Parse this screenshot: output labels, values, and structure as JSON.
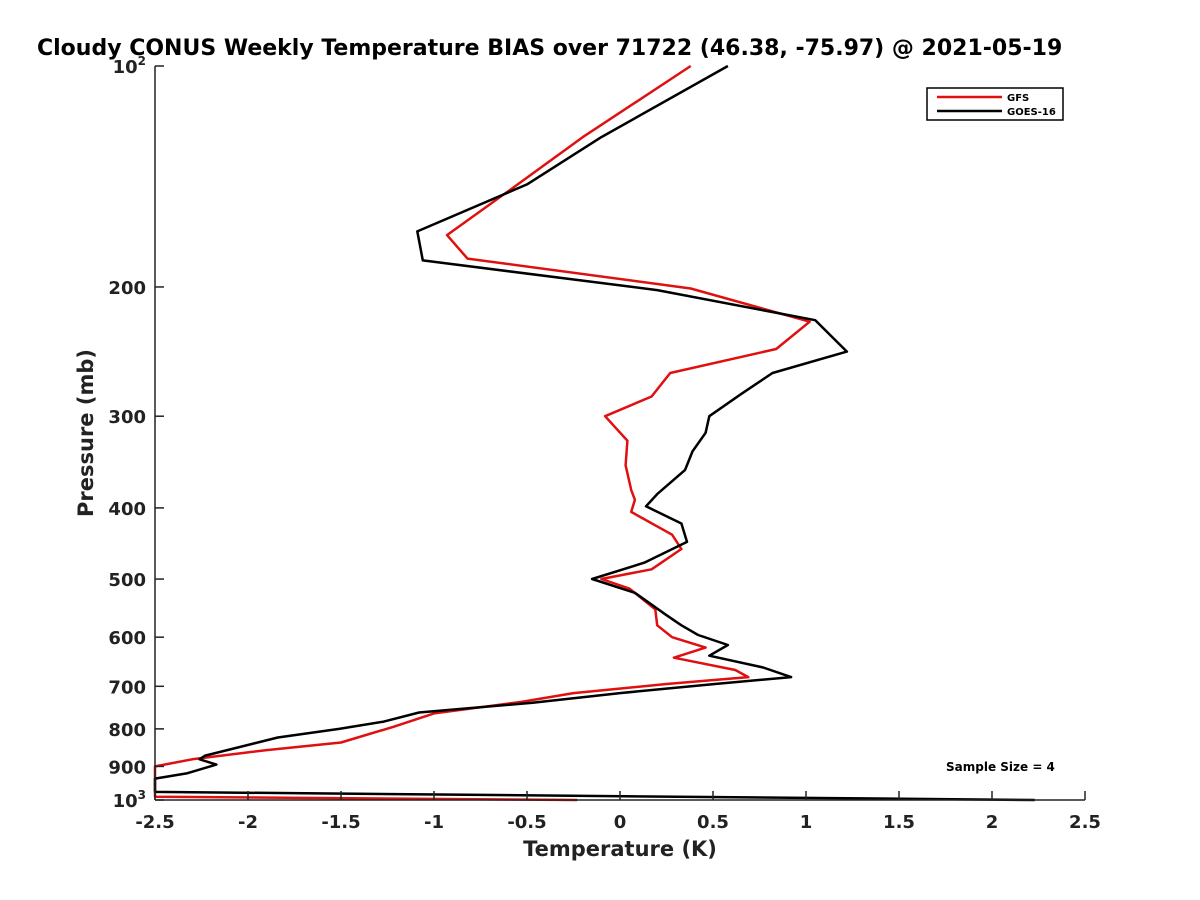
{
  "chart_data": {
    "type": "line",
    "title": "Cloudy CONUS Weekly Temperature BIAS over 71722 (46.38, -75.97) @ 2021-05-19",
    "xlabel": "Temperature (K)",
    "ylabel": "Pressure (mb)",
    "xlim": [
      -2.5,
      2.5
    ],
    "ylim": [
      1000,
      100
    ],
    "y_scale": "log",
    "y_reversed": true,
    "grid": false,
    "legend_position": "top-right",
    "x_ticks": [
      -2.5,
      -2,
      -1.5,
      -1,
      -0.5,
      0,
      0.5,
      1,
      1.5,
      2,
      2.5
    ],
    "x_tick_labels": [
      "-2.5",
      "-2",
      "-1.5",
      "-1",
      "-0.5",
      "0",
      "0.5",
      "1",
      "1.5",
      "2",
      "2.5"
    ],
    "y_ticks": [
      {
        "value": 100,
        "label": "10",
        "sup": "2"
      },
      {
        "value": 200,
        "label": "200",
        "sup": ""
      },
      {
        "value": 300,
        "label": "300",
        "sup": ""
      },
      {
        "value": 400,
        "label": "400",
        "sup": ""
      },
      {
        "value": 500,
        "label": "500",
        "sup": ""
      },
      {
        "value": 600,
        "label": "600",
        "sup": ""
      },
      {
        "value": 700,
        "label": "700",
        "sup": ""
      },
      {
        "value": 800,
        "label": "800",
        "sup": ""
      },
      {
        "value": 900,
        "label": "900",
        "sup": ""
      },
      {
        "value": 1000,
        "label": "10",
        "sup": "3"
      }
    ],
    "annotation": "Sample Size = 4",
    "series": [
      {
        "name": "GFS",
        "color": "#e01010",
        "points": [
          [
            0.38,
            100
          ],
          [
            -0.2,
            125
          ],
          [
            -0.55,
            145
          ],
          [
            -0.93,
            170
          ],
          [
            -0.82,
            183
          ],
          [
            0.38,
            201
          ],
          [
            1.02,
            223
          ],
          [
            0.84,
            243
          ],
          [
            0.27,
            262
          ],
          [
            0.17,
            282
          ],
          [
            -0.08,
            300
          ],
          [
            0.04,
            324
          ],
          [
            0.03,
            350
          ],
          [
            0.06,
            378
          ],
          [
            0.08,
            390
          ],
          [
            0.06,
            405
          ],
          [
            0.28,
            435
          ],
          [
            0.33,
            455
          ],
          [
            0.17,
            485
          ],
          [
            -0.1,
            500
          ],
          [
            0.05,
            515
          ],
          [
            0.19,
            550
          ],
          [
            0.2,
            578
          ],
          [
            0.28,
            600
          ],
          [
            0.46,
            620
          ],
          [
            0.29,
            640
          ],
          [
            0.62,
            665
          ],
          [
            0.69,
            680
          ],
          [
            0.25,
            695
          ],
          [
            -0.25,
            715
          ],
          [
            -0.53,
            735
          ],
          [
            -1.0,
            762
          ],
          [
            -1.22,
            795
          ],
          [
            -1.5,
            835
          ],
          [
            -1.9,
            855
          ],
          [
            -2.3,
            880
          ],
          [
            -2.45,
            895
          ],
          [
            -2.6,
            900
          ],
          [
            -2.6,
            990
          ],
          [
            -0.23,
            1000
          ]
        ]
      },
      {
        "name": "GOES-16",
        "color": "#000000",
        "points": [
          [
            0.58,
            100
          ],
          [
            -0.1,
            125
          ],
          [
            -0.5,
            145
          ],
          [
            -1.09,
            168
          ],
          [
            -1.06,
            184
          ],
          [
            0.2,
            202
          ],
          [
            1.05,
            222
          ],
          [
            1.22,
            245
          ],
          [
            0.82,
            262
          ],
          [
            0.65,
            280
          ],
          [
            0.48,
            300
          ],
          [
            0.46,
            316
          ],
          [
            0.39,
            335
          ],
          [
            0.35,
            355
          ],
          [
            0.2,
            383
          ],
          [
            0.14,
            398
          ],
          [
            0.33,
            420
          ],
          [
            0.36,
            445
          ],
          [
            0.13,
            475
          ],
          [
            -0.15,
            500
          ],
          [
            0.08,
            522
          ],
          [
            0.25,
            560
          ],
          [
            0.33,
            578
          ],
          [
            0.42,
            596
          ],
          [
            0.58,
            615
          ],
          [
            0.48,
            636
          ],
          [
            0.77,
            660
          ],
          [
            0.92,
            680
          ],
          [
            0.51,
            695
          ],
          [
            0.0,
            715
          ],
          [
            -0.47,
            737
          ],
          [
            -1.08,
            760
          ],
          [
            -1.27,
            782
          ],
          [
            -1.51,
            800
          ],
          [
            -1.84,
            822
          ],
          [
            -2.23,
            870
          ],
          [
            -2.26,
            880
          ],
          [
            -2.17,
            895
          ],
          [
            -2.33,
            920
          ],
          [
            -2.58,
            935
          ],
          [
            -2.6,
            975
          ],
          [
            2.23,
            1000
          ]
        ]
      }
    ]
  }
}
